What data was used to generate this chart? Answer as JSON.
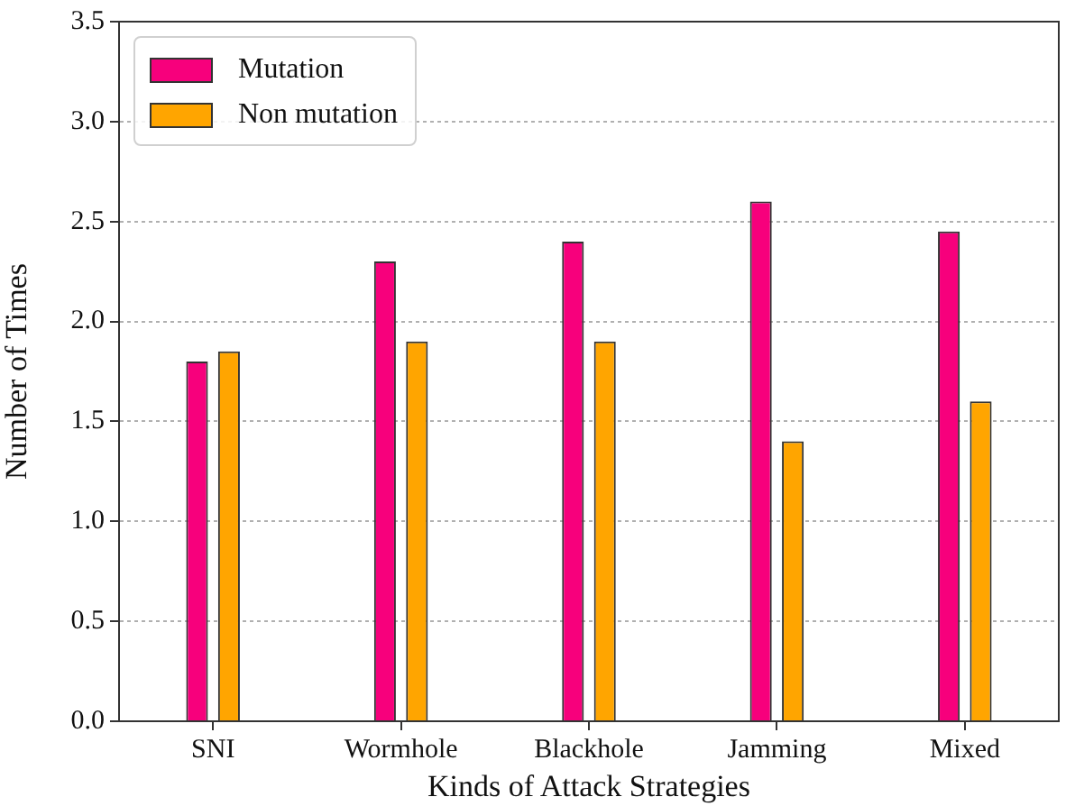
{
  "chart_data": {
    "type": "bar",
    "xlabel": "Kinds of Attack Strategies",
    "ylabel": "Number of Times",
    "categories": [
      "SNI",
      "Wormhole",
      "Blackhole",
      "Jamming",
      "Mixed"
    ],
    "series": [
      {
        "name": "Mutation",
        "color": "#f7007c",
        "values": [
          1.8,
          2.3,
          2.4,
          2.6,
          2.45
        ]
      },
      {
        "name": "Non mutation",
        "color": "#ffa500",
        "values": [
          1.85,
          1.9,
          1.9,
          1.4,
          1.6
        ]
      }
    ],
    "ylim": [
      0,
      3.5
    ],
    "yticks": [
      {
        "value": 0,
        "label": "0.0"
      },
      0.5,
      {
        "value": 1,
        "label": "1.0"
      },
      1.5,
      {
        "value": 2,
        "label": "2.0"
      },
      2.5,
      {
        "value": 3,
        "label": "3.0"
      },
      3.5
    ],
    "grid": "y",
    "legend": "top left"
  }
}
